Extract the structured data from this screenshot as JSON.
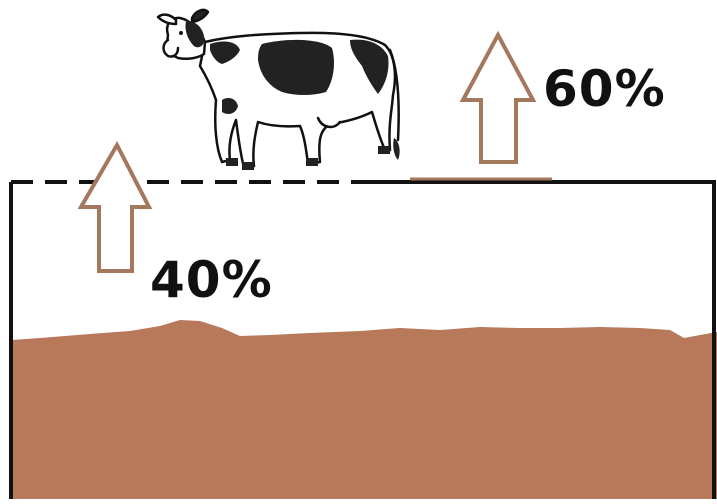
{
  "labels": {
    "left_percentage": "40%",
    "right_percentage": "60%"
  },
  "icons": {
    "left_arrow": "up-arrow-icon",
    "right_arrow": "up-arrow-icon",
    "animal": "cow-icon"
  },
  "colors": {
    "soil": "#B8785A",
    "arrow_stroke": "#A4785D",
    "outline": "#111111",
    "background": "#FFFFFF"
  }
}
